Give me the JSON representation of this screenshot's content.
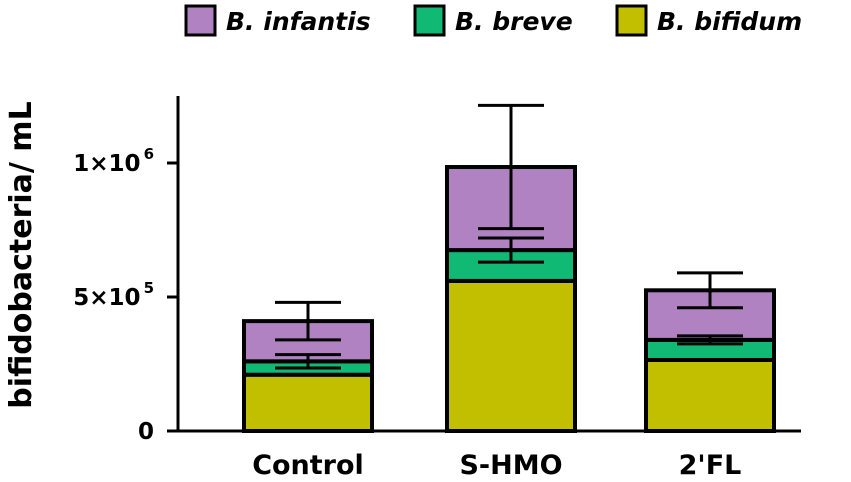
{
  "chart_data": {
    "type": "bar",
    "stacked": true,
    "title": "",
    "xlabel": "",
    "ylabel": "bifidobacteria/ mL",
    "ylim": [
      0,
      1250000
    ],
    "yticks": [
      {
        "value": 0,
        "base": "0",
        "exp": ""
      },
      {
        "value": 500000,
        "base": "5×10",
        "exp": "5"
      },
      {
        "value": 1000000,
        "base": "1×10",
        "exp": "6"
      }
    ],
    "categories": [
      "Control",
      "S-HMO",
      "2'FL"
    ],
    "series": [
      {
        "name": "B. bifidum",
        "color": "#c2bf00",
        "values": [
          210000,
          560000,
          265000
        ],
        "errors": [
          0,
          0,
          0
        ]
      },
      {
        "name": "B. breve",
        "color": "#10b974",
        "values": [
          50000,
          115000,
          75000
        ],
        "errors": [
          25000,
          45000,
          15000
        ]
      },
      {
        "name": "B. infantis",
        "color": "#b082c2",
        "values": [
          150000,
          310000,
          185000
        ],
        "errors": [
          70000,
          230000,
          65000
        ]
      }
    ],
    "legend_order": [
      "B. infantis",
      "B. breve",
      "B. bifidum"
    ],
    "legend_position": "top"
  }
}
